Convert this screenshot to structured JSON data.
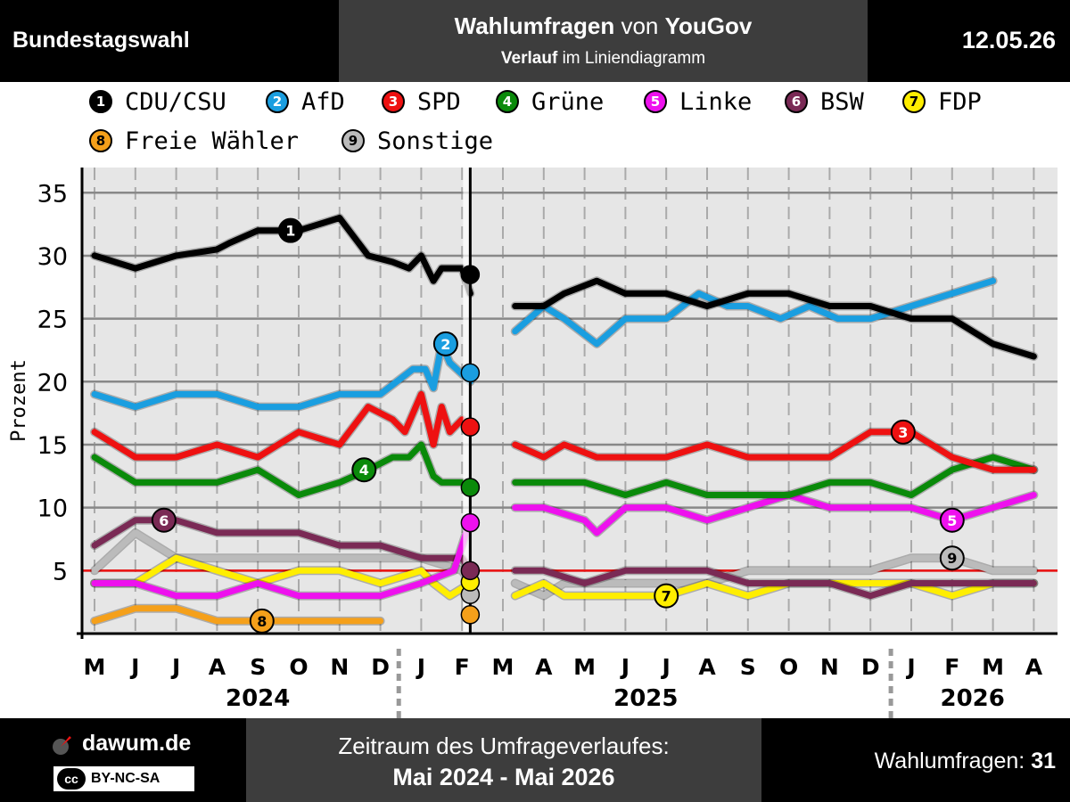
{
  "header": {
    "election": "Bundestagswahl",
    "title_strong": "Wahlumfragen",
    "title_plain": "von",
    "institute": "YouGov",
    "subtitle_strong": "Verlauf",
    "subtitle_plain": "im Liniendiagramm",
    "date": "12.05.26"
  },
  "footer": {
    "brand": "dawum.de",
    "license": "BY-NC-SA",
    "license_symbol": "cc",
    "range_label": "Zeitraum des Umfrageverlaufes:",
    "range_value": "Mai 2024 - Mai 2026",
    "count_label": "Wahlumfragen:",
    "count_value": "31"
  },
  "colors": {
    "CDU/CSU": "#000000",
    "AfD": "#1a9ee0",
    "SPD": "#ee1111",
    "Grüne": "#0a8a0a",
    "Linke": "#ee11ee",
    "BSW": "#7a2a55",
    "FDP": "#ffee00",
    "Freie Wähler": "#f5a01a",
    "Sonstige": "#bbbbbb",
    "threshold": "#ee1111"
  },
  "chart_data": {
    "type": "line",
    "ylabel": "Prozent",
    "xlabel": "",
    "ylim": [
      0,
      37
    ],
    "yticks": [
      5,
      10,
      15,
      20,
      25,
      30,
      35
    ],
    "threshold": 5,
    "grid": true,
    "legend_position": "top",
    "x_months": [
      "M",
      "J",
      "J",
      "A",
      "S",
      "O",
      "N",
      "D",
      "J",
      "F",
      "M",
      "A",
      "M",
      "J",
      "J",
      "A",
      "S",
      "O",
      "N",
      "D",
      "J",
      "F",
      "M",
      "A"
    ],
    "x_years": [
      {
        "label": "2024",
        "at": 4
      },
      {
        "label": "2025",
        "at": 13.5
      },
      {
        "label": "2026",
        "at": 21.5
      }
    ],
    "split_at": 9.2,
    "series": [
      {
        "name": "CDU/CSU",
        "num": "1",
        "points": [
          [
            0,
            30
          ],
          [
            1,
            29
          ],
          [
            2,
            30
          ],
          [
            3,
            30.5
          ],
          [
            3.3,
            31
          ],
          [
            4,
            32
          ],
          [
            5,
            32
          ],
          [
            6,
            33
          ],
          [
            6.7,
            30
          ],
          [
            7.3,
            29.5
          ],
          [
            7.7,
            29
          ],
          [
            8,
            30
          ],
          [
            8.3,
            28
          ],
          [
            8.5,
            29
          ],
          [
            9,
            29
          ],
          [
            9.2,
            27
          ]
        ],
        "points2": [
          [
            10.3,
            26
          ],
          [
            11,
            26
          ],
          [
            11.5,
            27
          ],
          [
            12.3,
            28
          ],
          [
            13,
            27
          ],
          [
            14,
            27
          ],
          [
            15,
            26
          ],
          [
            16,
            27
          ],
          [
            17,
            27
          ],
          [
            18,
            26
          ],
          [
            19,
            26
          ],
          [
            20,
            25
          ],
          [
            21,
            25
          ],
          [
            22,
            23
          ],
          [
            23,
            22
          ]
        ],
        "end": 28.5,
        "label_pos": [
          4.8,
          32
        ]
      },
      {
        "name": "AfD",
        "num": "2",
        "points": [
          [
            0,
            19
          ],
          [
            1,
            18
          ],
          [
            2,
            19
          ],
          [
            3,
            19
          ],
          [
            4,
            18
          ],
          [
            5,
            18
          ],
          [
            6,
            19
          ],
          [
            7,
            19
          ],
          [
            7.8,
            21
          ],
          [
            8.1,
            21
          ],
          [
            8.3,
            19.5
          ],
          [
            8.5,
            23
          ],
          [
            8.7,
            21.5
          ],
          [
            9.2,
            20
          ]
        ],
        "points2": [
          [
            10.3,
            24
          ],
          [
            11,
            26
          ],
          [
            11.5,
            25
          ],
          [
            12.3,
            23
          ],
          [
            13,
            25
          ],
          [
            14,
            25
          ],
          [
            14.8,
            27
          ],
          [
            15.5,
            26
          ],
          [
            16,
            26
          ],
          [
            16.8,
            25
          ],
          [
            17.5,
            26
          ],
          [
            18.2,
            25
          ],
          [
            19,
            25
          ],
          [
            20,
            26
          ],
          [
            21,
            27
          ],
          [
            22,
            28
          ]
        ],
        "end": 20.7,
        "label_pos": [
          8.6,
          23
        ]
      },
      {
        "name": "SPD",
        "num": "3",
        "points": [
          [
            0,
            16
          ],
          [
            1,
            14
          ],
          [
            2,
            14
          ],
          [
            3,
            15
          ],
          [
            4,
            14
          ],
          [
            5,
            16
          ],
          [
            6,
            15
          ],
          [
            6.7,
            18
          ],
          [
            7.3,
            17
          ],
          [
            7.6,
            16
          ],
          [
            8,
            19
          ],
          [
            8.3,
            15
          ],
          [
            8.5,
            18
          ],
          [
            8.7,
            16
          ],
          [
            9,
            17
          ],
          [
            9.2,
            16
          ]
        ],
        "points2": [
          [
            10.3,
            15
          ],
          [
            11,
            14
          ],
          [
            11.5,
            15
          ],
          [
            12.3,
            14
          ],
          [
            13,
            14
          ],
          [
            14,
            14
          ],
          [
            15,
            15
          ],
          [
            16,
            14
          ],
          [
            17,
            14
          ],
          [
            18,
            14
          ],
          [
            19,
            16
          ],
          [
            20,
            16
          ],
          [
            21,
            14
          ],
          [
            22,
            13
          ],
          [
            23,
            13
          ]
        ],
        "end": 16.4,
        "label_pos": [
          19.8,
          16
        ]
      },
      {
        "name": "Grüne",
        "num": "4",
        "points": [
          [
            0,
            14
          ],
          [
            1,
            12
          ],
          [
            2,
            12
          ],
          [
            3,
            12
          ],
          [
            4,
            13
          ],
          [
            5,
            11
          ],
          [
            6,
            12
          ],
          [
            6.7,
            13
          ],
          [
            7.3,
            14
          ],
          [
            7.7,
            14
          ],
          [
            8,
            15
          ],
          [
            8.3,
            12.5
          ],
          [
            8.5,
            12
          ],
          [
            9.2,
            12
          ]
        ],
        "points2": [
          [
            10.3,
            12
          ],
          [
            11,
            12
          ],
          [
            12,
            12
          ],
          [
            13,
            11
          ],
          [
            14,
            12
          ],
          [
            15,
            11
          ],
          [
            16,
            11
          ],
          [
            17,
            11
          ],
          [
            18,
            12
          ],
          [
            19,
            12
          ],
          [
            20,
            11
          ],
          [
            21,
            13
          ],
          [
            22,
            14
          ],
          [
            23,
            13
          ]
        ],
        "end": 11.6,
        "label_pos": [
          6.6,
          13
        ]
      },
      {
        "name": "Linke",
        "num": "5",
        "points": [
          [
            0,
            4
          ],
          [
            1,
            4
          ],
          [
            2,
            3
          ],
          [
            3,
            3
          ],
          [
            4,
            4
          ],
          [
            5,
            3
          ],
          [
            6,
            3
          ],
          [
            7,
            3
          ],
          [
            8,
            4
          ],
          [
            8.8,
            5
          ],
          [
            9.2,
            9
          ]
        ],
        "points2": [
          [
            10.3,
            10
          ],
          [
            11,
            10
          ],
          [
            12,
            9
          ],
          [
            12.3,
            8
          ],
          [
            13,
            10
          ],
          [
            14,
            10
          ],
          [
            15,
            9
          ],
          [
            16,
            10
          ],
          [
            17,
            11
          ],
          [
            18,
            10
          ],
          [
            19,
            10
          ],
          [
            20,
            10
          ],
          [
            21,
            9
          ],
          [
            22,
            10
          ],
          [
            23,
            11
          ]
        ],
        "end": 8.8,
        "label_pos": [
          21,
          9
        ]
      },
      {
        "name": "BSW",
        "num": "6",
        "points": [
          [
            0,
            7
          ],
          [
            1,
            9
          ],
          [
            2,
            9
          ],
          [
            3,
            8
          ],
          [
            4,
            8
          ],
          [
            5,
            8
          ],
          [
            6,
            7
          ],
          [
            7,
            7
          ],
          [
            8,
            6
          ],
          [
            9,
            6
          ],
          [
            9.2,
            5
          ]
        ],
        "points2": [
          [
            10.3,
            5
          ],
          [
            11,
            5
          ],
          [
            12,
            4
          ],
          [
            13,
            5
          ],
          [
            14,
            5
          ],
          [
            15,
            5
          ],
          [
            16,
            4
          ],
          [
            17,
            4
          ],
          [
            18,
            4
          ],
          [
            19,
            3
          ],
          [
            20,
            4
          ],
          [
            21,
            4
          ],
          [
            22,
            4
          ],
          [
            23,
            4
          ]
        ],
        "end": 5,
        "label_pos": [
          1.7,
          9
        ]
      },
      {
        "name": "FDP",
        "num": "7",
        "points": [
          [
            0,
            4
          ],
          [
            1,
            4
          ],
          [
            2,
            6
          ],
          [
            3,
            5
          ],
          [
            4,
            4
          ],
          [
            5,
            5
          ],
          [
            6,
            5
          ],
          [
            7,
            4
          ],
          [
            8,
            5
          ],
          [
            8.3,
            4
          ],
          [
            8.7,
            3
          ],
          [
            9.2,
            4
          ]
        ],
        "points2": [
          [
            10.3,
            3
          ],
          [
            11,
            4
          ],
          [
            11.5,
            3
          ],
          [
            12,
            3
          ],
          [
            13,
            3
          ],
          [
            14,
            3
          ],
          [
            15,
            4
          ],
          [
            16,
            3
          ],
          [
            17,
            4
          ],
          [
            18,
            4
          ],
          [
            19,
            4
          ],
          [
            20,
            4
          ],
          [
            21,
            3
          ],
          [
            22,
            4
          ],
          [
            23,
            4
          ]
        ],
        "end": 4.1,
        "label_pos": [
          14,
          3
        ]
      },
      {
        "name": "Freie Wähler",
        "num": "8",
        "points": [
          [
            0,
            1
          ],
          [
            1,
            2
          ],
          [
            2,
            2
          ],
          [
            3,
            1
          ],
          [
            4,
            1
          ],
          [
            5,
            1
          ],
          [
            6,
            1
          ],
          [
            7,
            1
          ]
        ],
        "points2": [],
        "end": 1.5,
        "label_pos": [
          4.1,
          1
        ]
      },
      {
        "name": "Sonstige",
        "num": "9",
        "points": [
          [
            0,
            5
          ],
          [
            1,
            8
          ],
          [
            2,
            6
          ],
          [
            3,
            6
          ],
          [
            4,
            6
          ],
          [
            5,
            6
          ],
          [
            6,
            6
          ],
          [
            7,
            6
          ],
          [
            8,
            6
          ],
          [
            9,
            5
          ],
          [
            9.2,
            4
          ]
        ],
        "points2": [
          [
            10.3,
            4
          ],
          [
            11,
            3
          ],
          [
            11.5,
            4
          ],
          [
            12,
            4
          ],
          [
            13,
            4
          ],
          [
            14,
            4
          ],
          [
            15,
            4
          ],
          [
            16,
            5
          ],
          [
            17,
            5
          ],
          [
            18,
            5
          ],
          [
            19,
            5
          ],
          [
            20,
            6
          ],
          [
            21,
            6
          ],
          [
            22,
            5
          ],
          [
            23,
            5
          ]
        ],
        "end": 3.1,
        "label_pos": [
          21,
          6
        ]
      }
    ]
  }
}
